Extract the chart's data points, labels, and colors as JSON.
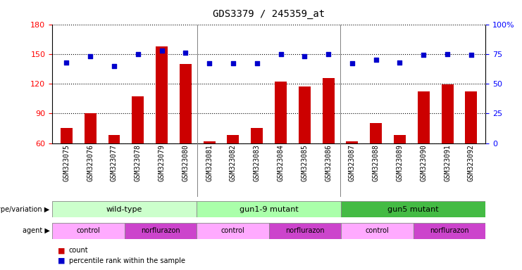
{
  "title": "GDS3379 / 245359_at",
  "samples": [
    "GSM323075",
    "GSM323076",
    "GSM323077",
    "GSM323078",
    "GSM323079",
    "GSM323080",
    "GSM323081",
    "GSM323082",
    "GSM323083",
    "GSM323084",
    "GSM323085",
    "GSM323086",
    "GSM323087",
    "GSM323088",
    "GSM323089",
    "GSM323090",
    "GSM323091",
    "GSM323092"
  ],
  "counts": [
    75,
    90,
    68,
    107,
    158,
    140,
    62,
    68,
    75,
    122,
    117,
    126,
    62,
    80,
    68,
    112,
    119,
    112
  ],
  "percentiles": [
    68,
    73,
    65,
    75,
    78,
    76,
    67,
    67,
    67,
    75,
    73,
    75,
    67,
    70,
    68,
    74,
    75,
    74
  ],
  "ylim_left": [
    60,
    180
  ],
  "ylim_right": [
    0,
    100
  ],
  "yticks_left": [
    60,
    90,
    120,
    150,
    180
  ],
  "yticks_right": [
    0,
    25,
    50,
    75,
    100
  ],
  "bar_color": "#cc0000",
  "dot_color": "#0000cc",
  "group_boundaries": [
    {
      "start": 0,
      "end": 6,
      "label": "wild-type",
      "color": "#ccffcc"
    },
    {
      "start": 6,
      "end": 12,
      "label": "gun1-9 mutant",
      "color": "#aaffaa"
    },
    {
      "start": 12,
      "end": 18,
      "label": "gun5 mutant",
      "color": "#44bb44"
    }
  ],
  "agent_boundaries": [
    {
      "start": 0,
      "end": 3,
      "label": "control",
      "color": "#ffaaff"
    },
    {
      "start": 3,
      "end": 6,
      "label": "norflurazon",
      "color": "#cc44cc"
    },
    {
      "start": 6,
      "end": 9,
      "label": "control",
      "color": "#ffaaff"
    },
    {
      "start": 9,
      "end": 12,
      "label": "norflurazon",
      "color": "#cc44cc"
    },
    {
      "start": 12,
      "end": 15,
      "label": "control",
      "color": "#ffaaff"
    },
    {
      "start": 15,
      "end": 18,
      "label": "norflurazon",
      "color": "#cc44cc"
    }
  ],
  "title_fontsize": 10,
  "tick_fontsize": 7,
  "label_fontsize": 8,
  "annotation_fontsize": 8
}
